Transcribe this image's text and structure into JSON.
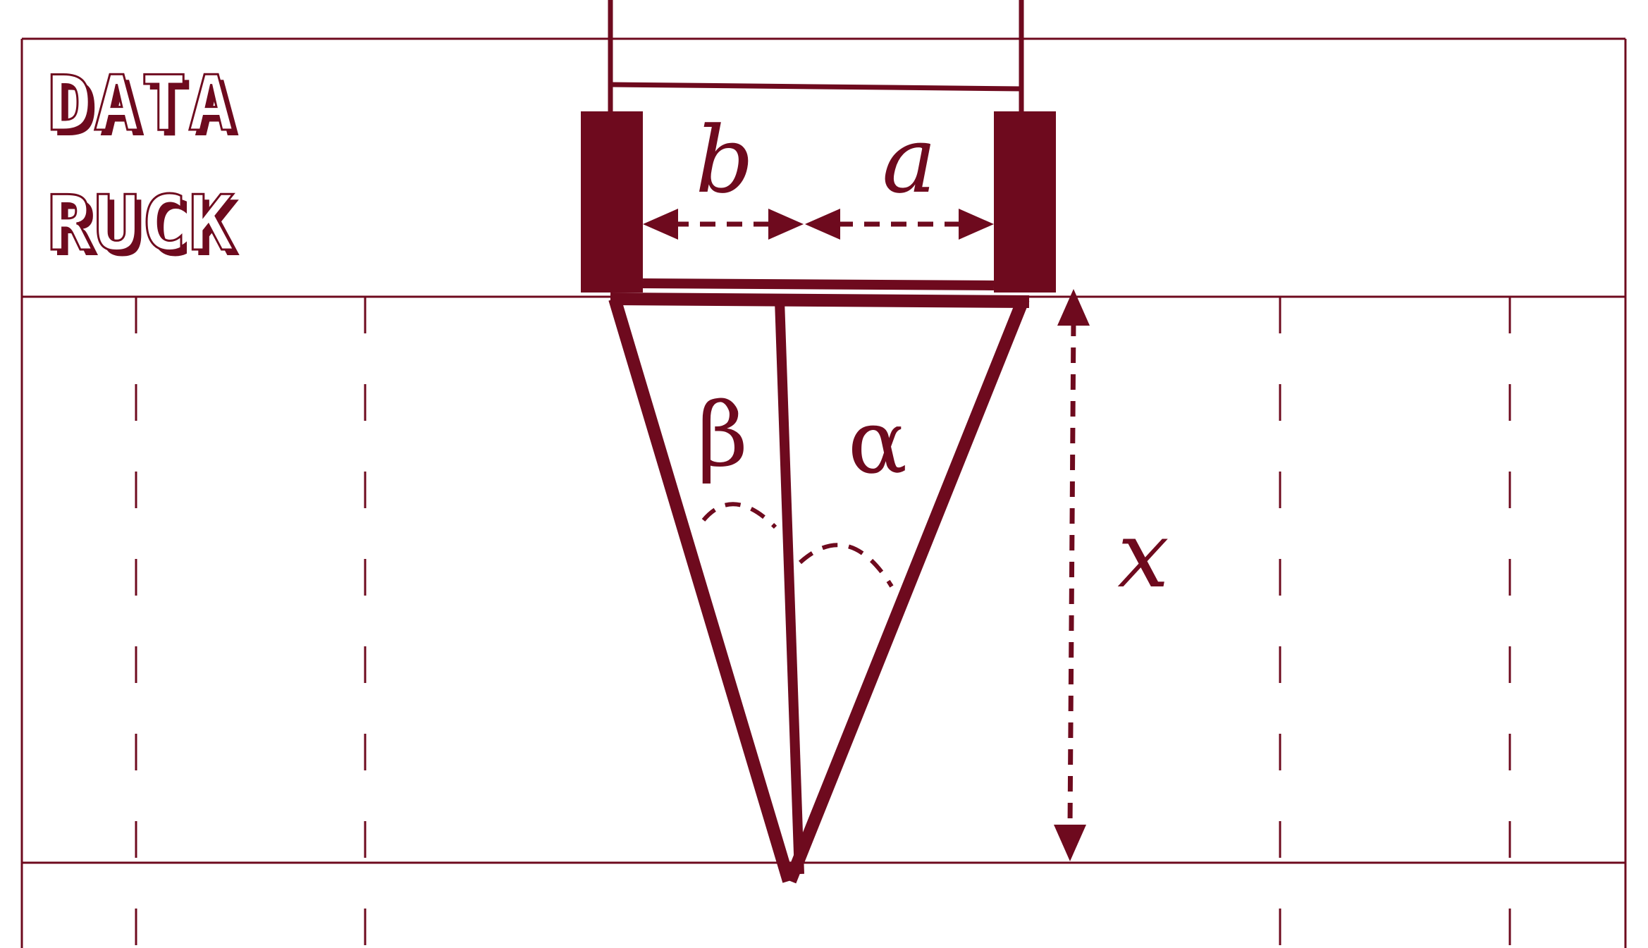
{
  "logo": {
    "line1": "DATA",
    "line2": "RUCK"
  },
  "labels": {
    "b": "b",
    "a_top": "a",
    "beta": "β",
    "alpha": "α",
    "x": "x"
  },
  "colors": {
    "accent": "#6e0a1e",
    "background": "#ffffff"
  }
}
